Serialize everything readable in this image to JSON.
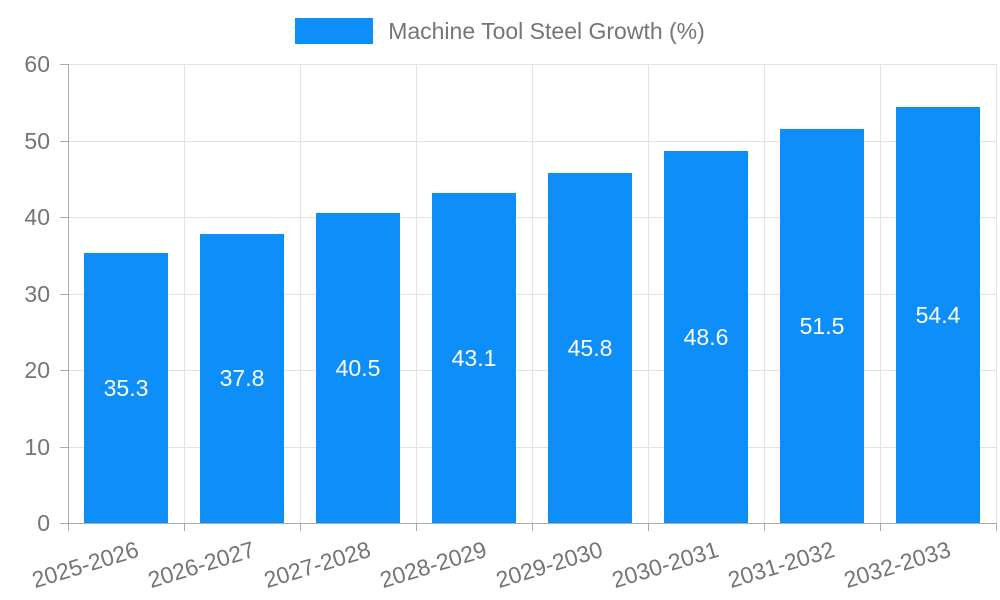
{
  "chart_data": {
    "type": "bar",
    "title": "Machine Tool Steel Growth (%)",
    "categories": [
      "2025-2026",
      "2026-2027",
      "2027-2028",
      "2028-2029",
      "2029-2030",
      "2030-2031",
      "2031-2032",
      "2032-2033"
    ],
    "values": [
      35.3,
      37.8,
      40.5,
      43.1,
      45.8,
      48.6,
      51.5,
      54.4
    ],
    "value_labels": [
      "35.3",
      "37.8",
      "40.5",
      "43.1",
      "45.8",
      "48.6",
      "51.5",
      "54.4"
    ],
    "xlabel": "",
    "ylabel": "",
    "ylim": [
      0,
      60
    ],
    "yticks": [
      0,
      10,
      20,
      30,
      40,
      50,
      60
    ],
    "ytick_step": 10,
    "grid": true,
    "legend_position": "top-center",
    "legend_label": "Machine Tool Steel Growth (%)",
    "value_label_position": "inside-center",
    "x_label_rotation_deg": -17,
    "colors": {
      "bar": "#0d8ef9",
      "grid_line": "#e3e3e3",
      "axis_line": "#aaaaaa",
      "tick_label": "#757575",
      "value_label": "#ffffff"
    }
  }
}
